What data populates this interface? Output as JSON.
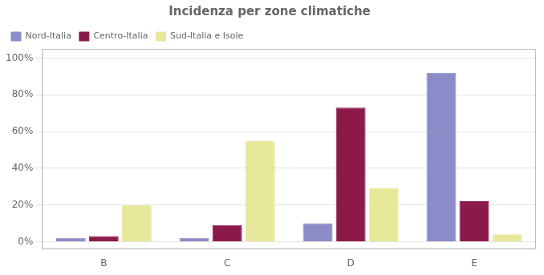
{
  "chart_data": {
    "type": "bar",
    "title": "Incidenza per zone climatiche",
    "categories": [
      "B",
      "C",
      "D",
      "E"
    ],
    "series": [
      {
        "name": "Nord-Italia",
        "values": [
          2,
          2,
          10,
          92
        ],
        "color": "#8B8BC8"
      },
      {
        "name": "Centro-Italia",
        "values": [
          3,
          9,
          73,
          22
        ],
        "color": "#8B1A4A"
      },
      {
        "name": "Sud-Italia e Isole",
        "values": [
          20,
          55,
          29,
          4
        ],
        "color": "#E8E89A"
      }
    ],
    "ylim": [
      -4,
      105
    ],
    "yticks": [
      {
        "value": 0,
        "label": "0%"
      },
      {
        "value": 20,
        "label": "20%"
      },
      {
        "value": 40,
        "label": "40%"
      },
      {
        "value": 60,
        "label": "60%"
      },
      {
        "value": 80,
        "label": "80%"
      },
      {
        "value": 100,
        "label": "100%"
      }
    ],
    "grid": true,
    "legend": "upper left"
  }
}
